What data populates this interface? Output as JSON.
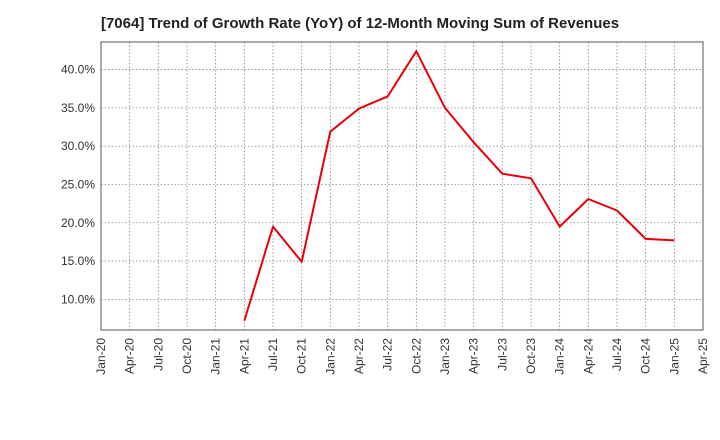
{
  "chart_data": {
    "type": "line",
    "title": "[7064]  Trend of Growth Rate (YoY) of 12-Month Moving Sum of Revenues",
    "xlabel": "",
    "ylabel": "",
    "x_ticks": [
      "Jan-20",
      "Apr-20",
      "Jul-20",
      "Oct-20",
      "Jan-21",
      "Apr-21",
      "Jul-21",
      "Oct-21",
      "Jan-22",
      "Apr-22",
      "Jul-22",
      "Oct-22",
      "Jan-23",
      "Apr-23",
      "Jul-23",
      "Oct-23",
      "Jan-24",
      "Apr-24",
      "Jul-24",
      "Oct-24",
      "Jan-25",
      "Apr-25"
    ],
    "y_ticks": [
      10.0,
      15.0,
      20.0,
      25.0,
      30.0,
      35.0,
      40.0
    ],
    "y_tick_suffix": "%",
    "ylim": [
      6.0,
      43.6
    ],
    "grid": true,
    "series": [
      {
        "color": "#e8000b",
        "x": [
          "Apr-21",
          "Jul-21",
          "Oct-21",
          "Jan-22",
          "Apr-22",
          "Jul-22",
          "Oct-22",
          "Jan-23",
          "Apr-23",
          "Jul-23",
          "Oct-23",
          "Jan-24",
          "Apr-24",
          "Jul-24",
          "Oct-24",
          "Jan-25"
        ],
        "values": [
          7.2,
          19.5,
          14.9,
          31.9,
          34.9,
          36.5,
          42.4,
          35.0,
          30.5,
          26.4,
          25.8,
          19.5,
          23.1,
          21.6,
          17.9,
          17.7
        ]
      }
    ]
  }
}
